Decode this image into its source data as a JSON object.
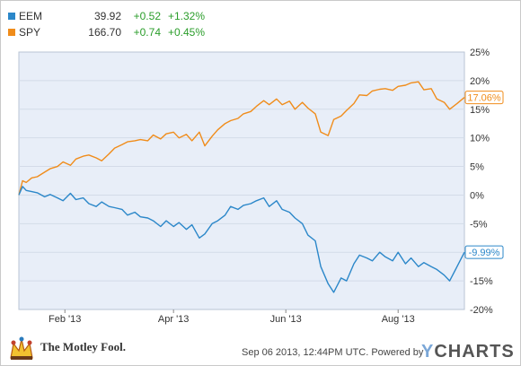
{
  "legend": [
    {
      "ticker": "EEM",
      "price": "39.92",
      "change": "+0.52",
      "pct": "+1.32%",
      "color": "#2b87c9"
    },
    {
      "ticker": "SPY",
      "price": "166.70",
      "change": "+0.74",
      "pct": "+0.45%",
      "color": "#f08c1a"
    }
  ],
  "footer": {
    "logo_text": "The Motley Fool.",
    "timestamp": "Sep 06 2013, 12:44PM UTC.",
    "powered_by": "Powered by",
    "ycharts_y": "Y",
    "ycharts_rest": "CHARTS"
  },
  "chart_data": {
    "type": "line",
    "x_tick_labels": [
      "Feb '13",
      "Apr '13",
      "Jun '13",
      "Aug '13"
    ],
    "y_tick_labels": [
      "25%",
      "20%",
      "15%",
      "10%",
      "5%",
      "0%",
      "-5%",
      "-10%",
      "-15%",
      "-20%"
    ],
    "ylim": [
      -20,
      25
    ],
    "x_range": [
      "2013-01-07",
      "2013-09-06"
    ],
    "plot_background": "#e8eef8",
    "end_labels": {
      "SPY": "17.06%",
      "EEM": "-9.99%"
    },
    "series": [
      {
        "name": "SPY",
        "color": "#f08c1a",
        "x": [
          "2013-01-07",
          "2013-01-09",
          "2013-01-11",
          "2013-01-14",
          "2013-01-17",
          "2013-01-21",
          "2013-01-24",
          "2013-01-28",
          "2013-01-31",
          "2013-02-04",
          "2013-02-07",
          "2013-02-11",
          "2013-02-14",
          "2013-02-18",
          "2013-02-21",
          "2013-02-25",
          "2013-02-28",
          "2013-03-04",
          "2013-03-07",
          "2013-03-11",
          "2013-03-14",
          "2013-03-18",
          "2013-03-21",
          "2013-03-25",
          "2013-03-28",
          "2013-04-01",
          "2013-04-04",
          "2013-04-08",
          "2013-04-11",
          "2013-04-15",
          "2013-04-18",
          "2013-04-22",
          "2013-04-25",
          "2013-04-29",
          "2013-05-02",
          "2013-05-06",
          "2013-05-09",
          "2013-05-13",
          "2013-05-16",
          "2013-05-20",
          "2013-05-23",
          "2013-05-27",
          "2013-05-30",
          "2013-06-03",
          "2013-06-06",
          "2013-06-10",
          "2013-06-13",
          "2013-06-17",
          "2013-06-20",
          "2013-06-24",
          "2013-06-27",
          "2013-07-01",
          "2013-07-04",
          "2013-07-08",
          "2013-07-11",
          "2013-07-15",
          "2013-07-18",
          "2013-07-22",
          "2013-07-25",
          "2013-07-29",
          "2013-08-01",
          "2013-08-05",
          "2013-08-08",
          "2013-08-12",
          "2013-08-15",
          "2013-08-19",
          "2013-08-22",
          "2013-08-26",
          "2013-08-29",
          "2013-09-02",
          "2013-09-06"
        ],
        "values": [
          0.0,
          2.5,
          2.2,
          3.0,
          3.2,
          4.0,
          4.6,
          5.0,
          5.8,
          5.2,
          6.3,
          6.8,
          7.0,
          6.5,
          6.0,
          7.2,
          8.2,
          8.8,
          9.3,
          9.5,
          9.7,
          9.5,
          10.5,
          9.8,
          10.7,
          11.0,
          10.0,
          10.6,
          9.5,
          11.0,
          8.6,
          10.3,
          11.4,
          12.5,
          13.0,
          13.4,
          14.2,
          14.6,
          15.5,
          16.5,
          15.8,
          16.8,
          15.8,
          16.4,
          15.0,
          16.2,
          15.2,
          14.2,
          11.0,
          10.4,
          13.2,
          13.8,
          14.8,
          16.0,
          17.5,
          17.4,
          18.2,
          18.5,
          18.6,
          18.3,
          19.0,
          19.2,
          19.6,
          19.8,
          18.4,
          18.6,
          16.8,
          16.2,
          15.0,
          16.0,
          17.06
        ]
      },
      {
        "name": "EEM",
        "color": "#2b87c9",
        "x": [
          "2013-01-07",
          "2013-01-09",
          "2013-01-11",
          "2013-01-14",
          "2013-01-17",
          "2013-01-21",
          "2013-01-24",
          "2013-01-28",
          "2013-01-31",
          "2013-02-04",
          "2013-02-07",
          "2013-02-11",
          "2013-02-14",
          "2013-02-18",
          "2013-02-21",
          "2013-02-25",
          "2013-02-28",
          "2013-03-04",
          "2013-03-07",
          "2013-03-11",
          "2013-03-14",
          "2013-03-18",
          "2013-03-21",
          "2013-03-25",
          "2013-03-28",
          "2013-04-01",
          "2013-04-04",
          "2013-04-08",
          "2013-04-11",
          "2013-04-15",
          "2013-04-18",
          "2013-04-22",
          "2013-04-25",
          "2013-04-29",
          "2013-05-02",
          "2013-05-06",
          "2013-05-09",
          "2013-05-13",
          "2013-05-16",
          "2013-05-20",
          "2013-05-23",
          "2013-05-27",
          "2013-05-30",
          "2013-06-03",
          "2013-06-06",
          "2013-06-10",
          "2013-06-13",
          "2013-06-17",
          "2013-06-20",
          "2013-06-24",
          "2013-06-27",
          "2013-07-01",
          "2013-07-04",
          "2013-07-08",
          "2013-07-11",
          "2013-07-15",
          "2013-07-18",
          "2013-07-22",
          "2013-07-25",
          "2013-07-29",
          "2013-08-01",
          "2013-08-05",
          "2013-08-08",
          "2013-08-12",
          "2013-08-15",
          "2013-08-19",
          "2013-08-22",
          "2013-08-26",
          "2013-08-29",
          "2013-09-02",
          "2013-09-06"
        ],
        "values": [
          0.0,
          1.5,
          0.8,
          0.6,
          0.4,
          -0.3,
          0.1,
          -0.5,
          -1.0,
          0.3,
          -0.8,
          -0.5,
          -1.5,
          -2.0,
          -1.2,
          -2.0,
          -2.2,
          -2.5,
          -3.5,
          -3.0,
          -3.8,
          -4.0,
          -4.5,
          -5.5,
          -4.5,
          -5.5,
          -4.8,
          -6.0,
          -5.2,
          -7.5,
          -6.8,
          -5.0,
          -4.5,
          -3.5,
          -2.0,
          -2.5,
          -1.8,
          -1.5,
          -1.0,
          -0.5,
          -2.0,
          -1.0,
          -2.5,
          -3.0,
          -4.0,
          -5.0,
          -7.0,
          -8.0,
          -12.5,
          -15.5,
          -17.0,
          -14.5,
          -15.0,
          -12.0,
          -10.5,
          -11.0,
          -11.5,
          -10.0,
          -10.8,
          -11.5,
          -10.0,
          -12.0,
          -11.0,
          -12.5,
          -11.8,
          -12.5,
          -13.0,
          -14.0,
          -15.0,
          -12.5,
          -9.99
        ]
      }
    ]
  }
}
